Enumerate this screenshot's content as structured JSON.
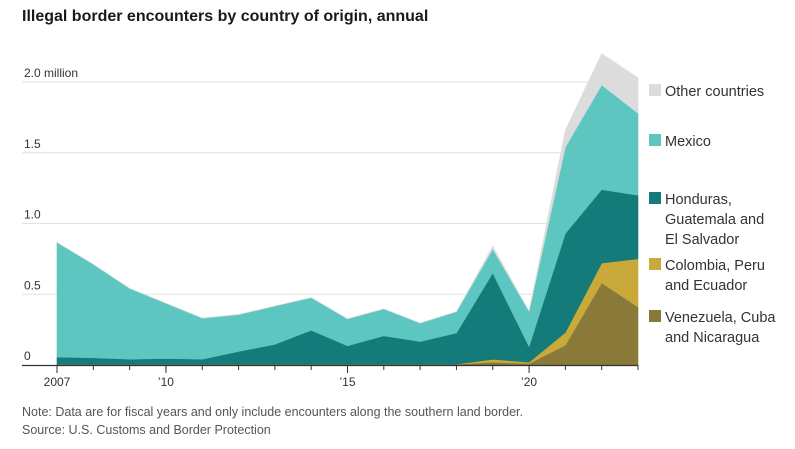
{
  "chart_data": {
    "type": "area",
    "stacked": true,
    "title": "Illegal border encounters by country of origin, annual",
    "x": [
      2007,
      2008,
      2009,
      2010,
      2011,
      2012,
      2013,
      2014,
      2015,
      2016,
      2017,
      2018,
      2019,
      2020,
      2021,
      2022,
      2023
    ],
    "x_ticks": [
      {
        "value": 2007,
        "label": "2007"
      },
      {
        "value": 2010,
        "label": "’10"
      },
      {
        "value": 2015,
        "label": "’15"
      },
      {
        "value": 2020,
        "label": "’20"
      }
    ],
    "y_ticks": [
      {
        "value": 0,
        "label": "0"
      },
      {
        "value": 0.5,
        "label": "0.5"
      },
      {
        "value": 1.0,
        "label": "1.0"
      },
      {
        "value": 1.5,
        "label": "1.5"
      },
      {
        "value": 2.0,
        "label": "2.0 million"
      }
    ],
    "ylim": [
      0,
      2.0
    ],
    "ylabel": "million",
    "series": [
      {
        "name": "Venezuela, Cuba and Nicaragua",
        "color": "#8a7a3a",
        "values": [
          0.005,
          0.005,
          0.005,
          0.005,
          0.005,
          0.005,
          0.005,
          0.005,
          0.005,
          0.005,
          0.005,
          0.005,
          0.02,
          0.01,
          0.14,
          0.58,
          0.41
        ]
      },
      {
        "name": "Colombia, Peru and Ecuador",
        "color": "#c9a93a",
        "values": [
          0.001,
          0.001,
          0.001,
          0.001,
          0.001,
          0.001,
          0.001,
          0.001,
          0.001,
          0.001,
          0.001,
          0.001,
          0.02,
          0.01,
          0.09,
          0.14,
          0.34
        ]
      },
      {
        "name": "Honduras, Guatemala and El Salvador",
        "color": "#147a7a",
        "values": [
          0.05,
          0.045,
          0.035,
          0.04,
          0.035,
          0.09,
          0.14,
          0.24,
          0.13,
          0.2,
          0.16,
          0.22,
          0.61,
          0.11,
          0.7,
          0.52,
          0.45
        ]
      },
      {
        "name": "Mexico",
        "color": "#5ec6c0",
        "values": [
          0.81,
          0.66,
          0.5,
          0.39,
          0.29,
          0.26,
          0.27,
          0.23,
          0.19,
          0.19,
          0.13,
          0.15,
          0.17,
          0.25,
          0.61,
          0.74,
          0.58
        ]
      },
      {
        "name": "Other countries",
        "color": "#dcdcdc",
        "values": [
          0.0,
          0.0,
          0.0,
          0.0,
          0.0,
          0.0,
          0.0,
          0.0,
          0.0,
          0.0,
          0.0,
          0.0,
          0.02,
          0.0,
          0.12,
          0.22,
          0.25
        ]
      }
    ],
    "legend": [
      {
        "label": "Other countries",
        "color": "#dcdcdc"
      },
      {
        "label": "Mexico",
        "color": "#5ec6c0"
      },
      {
        "label": "Honduras, Guatemala and El Salvador",
        "color": "#147a7a",
        "lines": [
          "Honduras,",
          "Guatemala and",
          "El Salvador"
        ]
      },
      {
        "label": "Colombia, Peru and Ecuador",
        "color": "#c9a93a",
        "lines": [
          "Colombia, Peru",
          "and Ecuador"
        ]
      },
      {
        "label": "Venezuela, Cuba and Nicaragua",
        "color": "#8a7a3a",
        "lines": [
          "Venezuela, Cuba",
          "and Nicaragua"
        ]
      }
    ],
    "grid": true
  },
  "notes": {
    "note": "Note: Data are for fiscal years and only include encounters along the southern land border.",
    "source": "Source: U.S. Customs and Border Protection"
  }
}
